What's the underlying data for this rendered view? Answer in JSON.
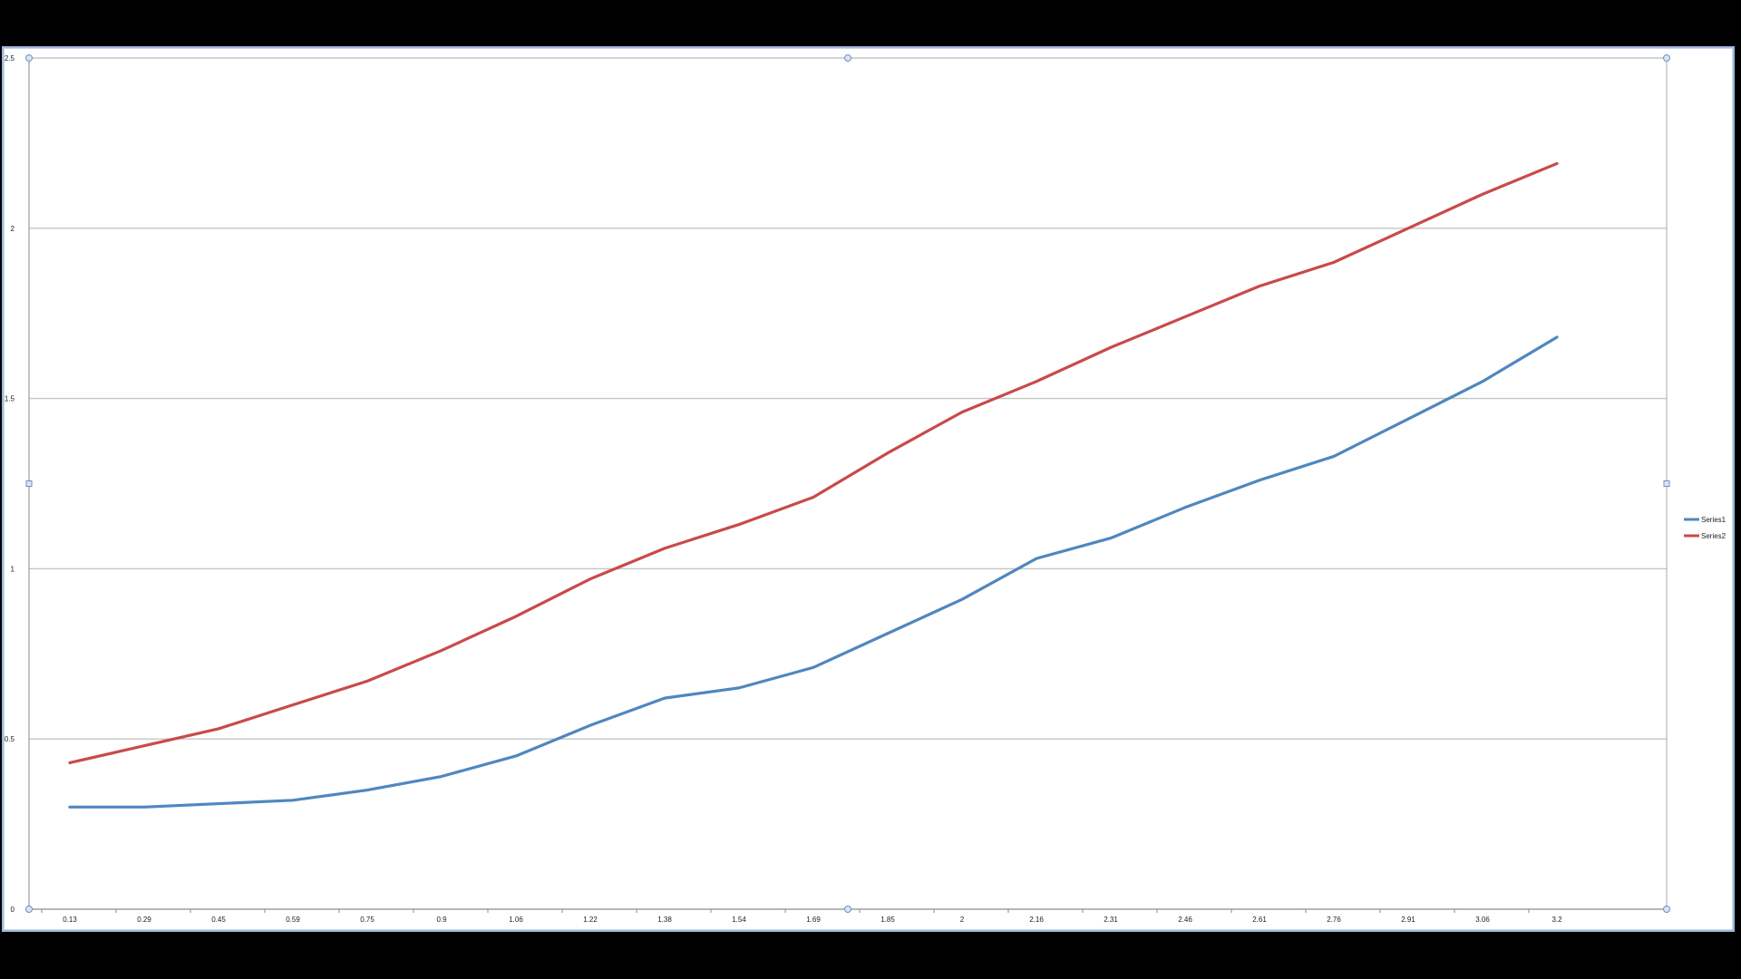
{
  "chart_data": {
    "type": "line",
    "title": "",
    "xlabel": "",
    "ylabel": "",
    "categories": [
      "0.13",
      "0.29",
      "0.45",
      "0.59",
      "0.75",
      "0.9",
      "1.06",
      "1.22",
      "1.38",
      "1.54",
      "1.69",
      "1.85",
      "2",
      "2.16",
      "2.31",
      "2.46",
      "2.61",
      "2.76",
      "2.91",
      "3.06",
      "3.2"
    ],
    "ylim": [
      0,
      2.5
    ],
    "yticks": [
      "0",
      "0.5",
      "1",
      "1.5",
      "2",
      "2.5"
    ],
    "grid": true,
    "legend": "right",
    "series": [
      {
        "name": "Series1",
        "color": "#4f87bf",
        "values": [
          0.3,
          0.3,
          0.31,
          0.32,
          0.35,
          0.39,
          0.45,
          0.54,
          0.62,
          0.65,
          0.71,
          0.81,
          0.91,
          1.03,
          1.09,
          1.18,
          1.26,
          1.33,
          1.44,
          1.55,
          1.68
        ]
      },
      {
        "name": "Series2",
        "color": "#c94a4a",
        "values": [
          0.43,
          0.48,
          0.53,
          0.6,
          0.67,
          0.76,
          0.86,
          0.97,
          1.06,
          1.13,
          1.21,
          1.34,
          1.46,
          1.55,
          1.65,
          1.74,
          1.83,
          1.9,
          2.0,
          2.1,
          2.19
        ]
      }
    ]
  }
}
